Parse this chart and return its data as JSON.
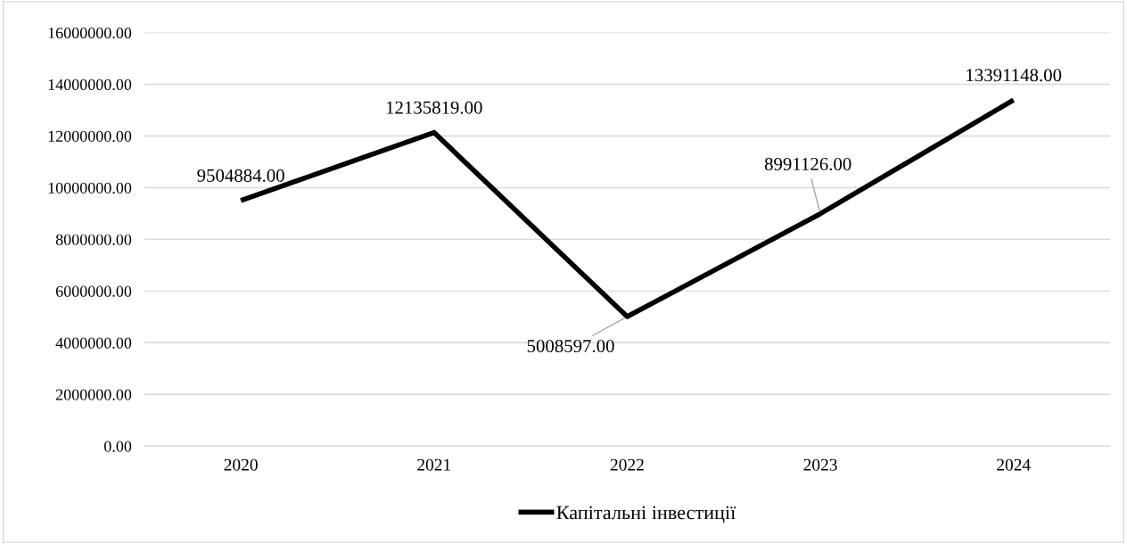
{
  "chart_data": {
    "type": "line",
    "categories": [
      "2020",
      "2021",
      "2022",
      "2023",
      "2024"
    ],
    "series": [
      {
        "name": "Капітальні інвестиції",
        "color": "#000000",
        "values": [
          9504884,
          12135819,
          5008597,
          8991126,
          13391148
        ],
        "value_labels": [
          "9504884.00",
          "12135819.00",
          "5008597.00",
          "8991126.00",
          "13391148.00"
        ]
      }
    ],
    "ylim": [
      0,
      16000000
    ],
    "yticks": [
      {
        "value": 0,
        "label": "0.00"
      },
      {
        "value": 2000000,
        "label": "2000000.00"
      },
      {
        "value": 4000000,
        "label": "4000000.00"
      },
      {
        "value": 6000000,
        "label": "6000000.00"
      },
      {
        "value": 8000000,
        "label": "8000000.00"
      },
      {
        "value": 10000000,
        "label": "10000000.00"
      },
      {
        "value": 12000000,
        "label": "12000000.00"
      },
      {
        "value": 14000000,
        "label": "14000000.00"
      },
      {
        "value": 16000000,
        "label": "16000000.00"
      }
    ],
    "grid": "y",
    "legend": "bottom",
    "marker": "none",
    "line_style": "solid"
  }
}
